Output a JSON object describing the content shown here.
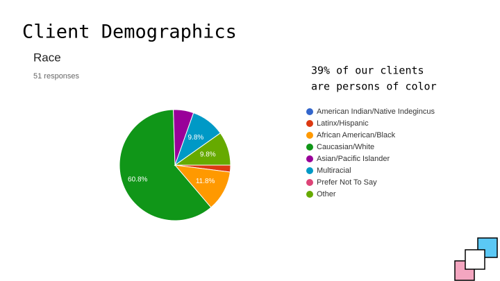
{
  "slide": {
    "title": "Client Demographics",
    "note": [
      "39% of our clients",
      "are persons of color"
    ]
  },
  "chart_data": {
    "type": "pie",
    "title": "Race",
    "subtitle": "51 responses",
    "categories": [
      "American Indian/Native Indegincus",
      "Latinx/Hispanic",
      "African American/Black",
      "Caucasian/White",
      "Asian/Pacific Islander",
      "Multiracial",
      "Prefer Not To Say",
      "Other"
    ],
    "values": [
      0,
      2.0,
      11.8,
      60.8,
      5.9,
      9.8,
      0,
      9.8
    ],
    "value_labels": [
      null,
      null,
      "11.8%",
      "60.8%",
      null,
      "9.8%",
      null,
      "9.8%"
    ],
    "colors": [
      "#3366cc",
      "#dc3912",
      "#ff9900",
      "#109618",
      "#990099",
      "#0099c6",
      "#dd4477",
      "#66aa00"
    ]
  }
}
